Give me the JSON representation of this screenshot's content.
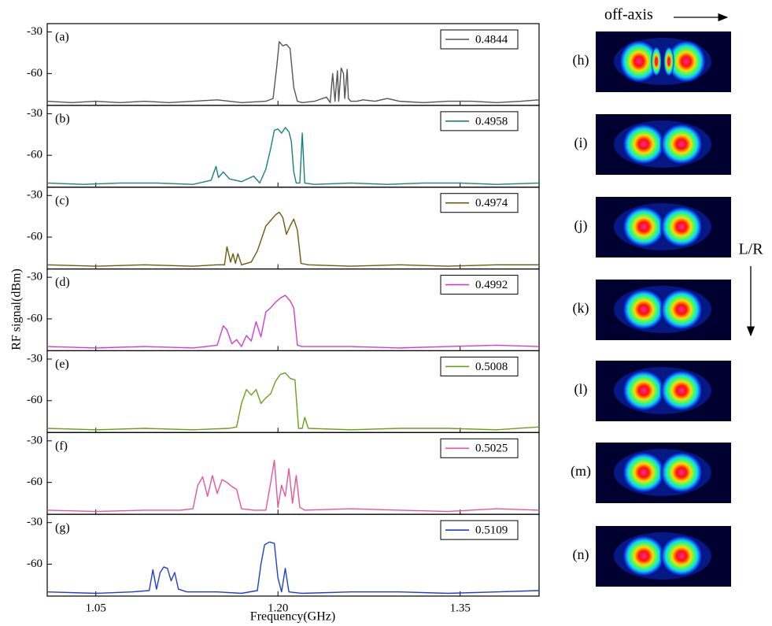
{
  "ylabel": "RF signal(dBm)",
  "xlabel": "Frequency(GHz)",
  "chart_data": [
    {
      "type": "line",
      "label": "(a)",
      "xlim": [
        1.01,
        1.415
      ],
      "ylim": [
        -83,
        -24
      ],
      "yticks": [
        -30,
        -60
      ],
      "x": [
        1.01,
        1.03,
        1.05,
        1.07,
        1.09,
        1.11,
        1.13,
        1.15,
        1.17,
        1.19,
        1.196,
        1.199,
        1.201,
        1.204,
        1.207,
        1.21,
        1.213,
        1.216,
        1.22,
        1.23,
        1.24,
        1.243,
        1.245,
        1.247,
        1.249,
        1.25,
        1.252,
        1.254,
        1.255,
        1.257,
        1.258,
        1.26,
        1.265,
        1.27,
        1.28,
        1.29,
        1.3,
        1.32,
        1.34,
        1.36,
        1.38,
        1.4,
        1.415
      ],
      "series": [
        {
          "name": "0.4844",
          "color": "#555555",
          "values": [
            -80,
            -81,
            -80,
            -81,
            -80,
            -81,
            -80,
            -79,
            -81,
            -80,
            -78,
            -55,
            -37,
            -40,
            -39,
            -42,
            -70,
            -80,
            -81,
            -80,
            -77,
            -81,
            -60,
            -80,
            -58,
            -80,
            -56,
            -60,
            -78,
            -57,
            -78,
            -80,
            -80,
            -79,
            -80,
            -78,
            -80,
            -81,
            -80,
            -80,
            -81,
            -80,
            -79
          ]
        }
      ]
    },
    {
      "type": "line",
      "label": "(b)",
      "xlim": [
        1.01,
        1.415
      ],
      "ylim": [
        -83,
        -24
      ],
      "yticks": [
        -30,
        -60
      ],
      "x": [
        1.01,
        1.04,
        1.07,
        1.1,
        1.13,
        1.145,
        1.149,
        1.151,
        1.155,
        1.16,
        1.17,
        1.18,
        1.185,
        1.19,
        1.194,
        1.197,
        1.2,
        1.203,
        1.206,
        1.209,
        1.211,
        1.213,
        1.215,
        1.218,
        1.22,
        1.222,
        1.23,
        1.26,
        1.29,
        1.32,
        1.35,
        1.38,
        1.415
      ],
      "series": [
        {
          "name": "0.4958",
          "color": "#1a7f7f",
          "values": [
            -80,
            -81,
            -80,
            -80,
            -81,
            -78,
            -68,
            -76,
            -72,
            -77,
            -79,
            -75,
            -80,
            -70,
            -55,
            -42,
            -41,
            -44,
            -40,
            -43,
            -50,
            -72,
            -80,
            -80,
            -44,
            -80,
            -81,
            -80,
            -81,
            -80,
            -80,
            -81,
            -80
          ]
        }
      ]
    },
    {
      "type": "line",
      "label": "(c)",
      "xlim": [
        1.01,
        1.415
      ],
      "ylim": [
        -83,
        -24
      ],
      "yticks": [
        -30,
        -60
      ],
      "x": [
        1.01,
        1.05,
        1.09,
        1.13,
        1.15,
        1.156,
        1.158,
        1.161,
        1.163,
        1.165,
        1.167,
        1.17,
        1.178,
        1.183,
        1.187,
        1.19,
        1.194,
        1.198,
        1.201,
        1.204,
        1.207,
        1.21,
        1.213,
        1.216,
        1.219,
        1.225,
        1.26,
        1.3,
        1.34,
        1.38,
        1.415
      ],
      "series": [
        {
          "name": "0.4974",
          "color": "#6b5a10",
          "values": [
            -80,
            -81,
            -80,
            -81,
            -80,
            -80,
            -67,
            -78,
            -72,
            -79,
            -72,
            -80,
            -78,
            -70,
            -60,
            -52,
            -48,
            -44,
            -42,
            -46,
            -58,
            -52,
            -47,
            -55,
            -79,
            -80,
            -81,
            -80,
            -81,
            -80,
            -80
          ]
        }
      ]
    },
    {
      "type": "line",
      "label": "(d)",
      "xlim": [
        1.01,
        1.415
      ],
      "ylim": [
        -83,
        -24
      ],
      "yticks": [
        -30,
        -60
      ],
      "x": [
        1.01,
        1.05,
        1.09,
        1.13,
        1.15,
        1.155,
        1.158,
        1.162,
        1.166,
        1.17,
        1.174,
        1.178,
        1.182,
        1.186,
        1.19,
        1.194,
        1.198,
        1.202,
        1.206,
        1.21,
        1.213,
        1.216,
        1.22,
        1.26,
        1.3,
        1.34,
        1.38,
        1.415
      ],
      "series": [
        {
          "name": "0.4992",
          "color": "#d23cd2",
          "values": [
            -80,
            -81,
            -80,
            -81,
            -79,
            -65,
            -68,
            -78,
            -75,
            -80,
            -72,
            -76,
            -62,
            -73,
            -55,
            -52,
            -48,
            -45,
            -43,
            -47,
            -52,
            -79,
            -80,
            -80,
            -81,
            -80,
            -79,
            -80
          ]
        }
      ]
    },
    {
      "type": "line",
      "label": "(e)",
      "xlim": [
        1.01,
        1.415
      ],
      "ylim": [
        -83,
        -24
      ],
      "yticks": [
        -30,
        -60
      ],
      "x": [
        1.01,
        1.05,
        1.09,
        1.13,
        1.16,
        1.166,
        1.17,
        1.174,
        1.178,
        1.182,
        1.186,
        1.19,
        1.194,
        1.198,
        1.202,
        1.206,
        1.21,
        1.214,
        1.217,
        1.22,
        1.222,
        1.225,
        1.26,
        1.3,
        1.34,
        1.38,
        1.415
      ],
      "series": [
        {
          "name": "0.5008",
          "color": "#6aa01a",
          "values": [
            -80,
            -81,
            -80,
            -81,
            -80,
            -79,
            -62,
            -52,
            -56,
            -52,
            -62,
            -58,
            -55,
            -46,
            -41,
            -40,
            -44,
            -45,
            -80,
            -80,
            -72,
            -80,
            -81,
            -80,
            -80,
            -81,
            -79
          ]
        }
      ]
    },
    {
      "type": "line",
      "label": "(f)",
      "xlim": [
        1.01,
        1.415
      ],
      "ylim": [
        -83,
        -24
      ],
      "yticks": [
        -30,
        -60
      ],
      "x": [
        1.01,
        1.05,
        1.09,
        1.12,
        1.13,
        1.134,
        1.138,
        1.142,
        1.146,
        1.15,
        1.154,
        1.158,
        1.162,
        1.166,
        1.17,
        1.18,
        1.19,
        1.194,
        1.197,
        1.2,
        1.203,
        1.206,
        1.209,
        1.212,
        1.215,
        1.218,
        1.222,
        1.26,
        1.3,
        1.34,
        1.38,
        1.415
      ],
      "series": [
        {
          "name": "0.5025",
          "color": "#e8549a",
          "values": [
            -80,
            -81,
            -80,
            -80,
            -79,
            -62,
            -56,
            -70,
            -55,
            -68,
            -58,
            -60,
            -63,
            -65,
            -79,
            -80,
            -80,
            -60,
            -44,
            -78,
            -62,
            -70,
            -50,
            -75,
            -55,
            -78,
            -80,
            -79,
            -80,
            -81,
            -79,
            -80
          ]
        }
      ]
    },
    {
      "type": "line",
      "label": "(g)",
      "xlim": [
        1.01,
        1.415
      ],
      "ylim": [
        -83,
        -24
      ],
      "yticks": [
        -30,
        -60
      ],
      "xticks": [
        1.05,
        {
          "value": 1.2,
          "label": "1.20"
        },
        1.35
      ],
      "x": [
        1.01,
        1.05,
        1.08,
        1.094,
        1.097,
        1.1,
        1.103,
        1.106,
        1.109,
        1.112,
        1.115,
        1.118,
        1.125,
        1.15,
        1.17,
        1.183,
        1.186,
        1.189,
        1.193,
        1.197,
        1.2,
        1.203,
        1.206,
        1.209,
        1.22,
        1.26,
        1.3,
        1.34,
        1.38,
        1.415
      ],
      "series": [
        {
          "name": "0.5109",
          "color": "#1f3fd0",
          "values": [
            -80,
            -81,
            -80,
            -79,
            -64,
            -78,
            -66,
            -62,
            -63,
            -72,
            -66,
            -78,
            -80,
            -80,
            -81,
            -79,
            -60,
            -46,
            -44,
            -45,
            -70,
            -80,
            -63,
            -80,
            -81,
            -80,
            -80,
            -81,
            -80,
            -79
          ]
        }
      ]
    }
  ],
  "images": {
    "top_label": "off-axis",
    "side_label": "L/R",
    "labels": [
      "(h)",
      "(i)",
      "(j)",
      "(k)",
      "(l)",
      "(m)",
      "(n)"
    ]
  }
}
